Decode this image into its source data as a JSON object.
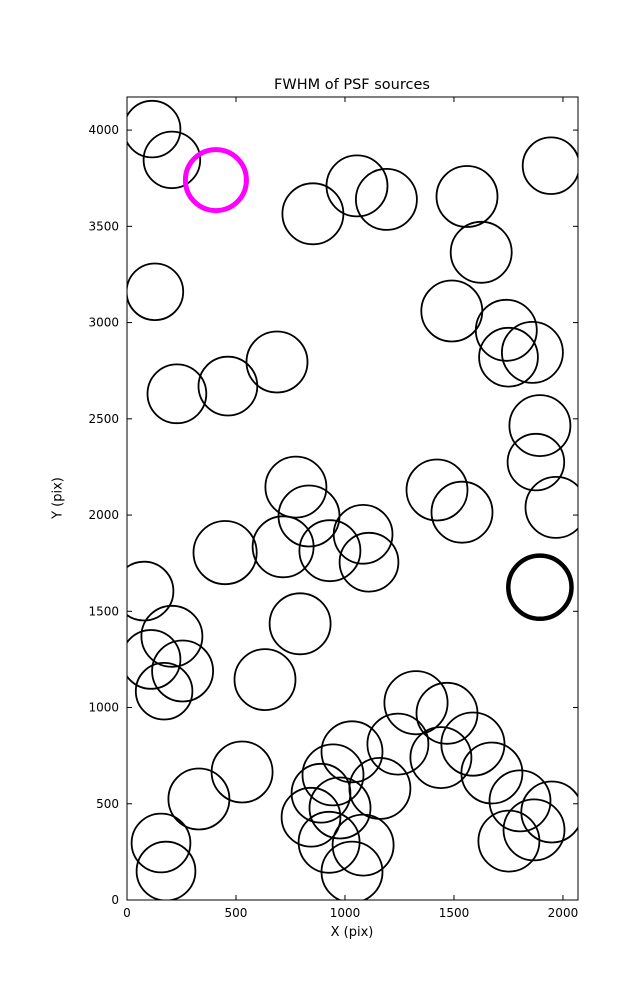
{
  "chart_data": {
    "type": "scatter",
    "title": "FWHM of PSF sources",
    "xlabel": "X (pix)",
    "ylabel": "Y (pix)",
    "xlim": [
      0,
      2069
    ],
    "ylim": [
      0,
      4172
    ],
    "xticks": [
      0,
      500,
      1000,
      1500,
      2000
    ],
    "yticks": [
      0,
      500,
      1000,
      1500,
      2000,
      2500,
      3000,
      3500,
      4000
    ],
    "grid": false,
    "legend": "none",
    "marker": "circle-outline",
    "default_color": "#000000",
    "highlight_color": "#ff00ff",
    "default_linewidth": 1.8,
    "circles": [
      {
        "x": 115,
        "y": 4005,
        "r": 130
      },
      {
        "x": 206,
        "y": 3845,
        "r": 130
      },
      {
        "x": 408,
        "y": 3740,
        "r": 140,
        "color": "#ff00ff",
        "lw": 5,
        "highlight": true
      },
      {
        "x": 853,
        "y": 3565,
        "r": 140
      },
      {
        "x": 1055,
        "y": 3710,
        "r": 140
      },
      {
        "x": 1190,
        "y": 3640,
        "r": 140
      },
      {
        "x": 1560,
        "y": 3655,
        "r": 140
      },
      {
        "x": 1625,
        "y": 3365,
        "r": 140
      },
      {
        "x": 1945,
        "y": 3815,
        "r": 130
      },
      {
        "x": 128,
        "y": 3160,
        "r": 130
      },
      {
        "x": 1490,
        "y": 3060,
        "r": 140
      },
      {
        "x": 1740,
        "y": 2960,
        "r": 140
      },
      {
        "x": 1860,
        "y": 2845,
        "r": 140
      },
      {
        "x": 1750,
        "y": 2820,
        "r": 135
      },
      {
        "x": 688,
        "y": 2795,
        "r": 140
      },
      {
        "x": 463,
        "y": 2670,
        "r": 135
      },
      {
        "x": 229,
        "y": 2630,
        "r": 135
      },
      {
        "x": 1894,
        "y": 2465,
        "r": 140
      },
      {
        "x": 1876,
        "y": 2275,
        "r": 130
      },
      {
        "x": 775,
        "y": 2145,
        "r": 140
      },
      {
        "x": 835,
        "y": 1995,
        "r": 140
      },
      {
        "x": 716,
        "y": 1835,
        "r": 140
      },
      {
        "x": 931,
        "y": 1815,
        "r": 140
      },
      {
        "x": 450,
        "y": 1805,
        "r": 145
      },
      {
        "x": 1083,
        "y": 1900,
        "r": 135
      },
      {
        "x": 1110,
        "y": 1755,
        "r": 135
      },
      {
        "x": 1422,
        "y": 2130,
        "r": 140
      },
      {
        "x": 1537,
        "y": 2015,
        "r": 140
      },
      {
        "x": 1968,
        "y": 2040,
        "r": 140
      },
      {
        "x": 1894,
        "y": 1625,
        "r": 145,
        "lw": 4.5,
        "bold": true
      },
      {
        "x": 78,
        "y": 1605,
        "r": 135
      },
      {
        "x": 206,
        "y": 1370,
        "r": 140
      },
      {
        "x": 110,
        "y": 1250,
        "r": 135
      },
      {
        "x": 255,
        "y": 1190,
        "r": 140
      },
      {
        "x": 170,
        "y": 1085,
        "r": 130
      },
      {
        "x": 794,
        "y": 1435,
        "r": 140
      },
      {
        "x": 633,
        "y": 1145,
        "r": 140
      },
      {
        "x": 1326,
        "y": 1025,
        "r": 145
      },
      {
        "x": 1468,
        "y": 970,
        "r": 140
      },
      {
        "x": 1243,
        "y": 810,
        "r": 140
      },
      {
        "x": 1032,
        "y": 770,
        "r": 140
      },
      {
        "x": 945,
        "y": 650,
        "r": 140
      },
      {
        "x": 977,
        "y": 478,
        "r": 140
      },
      {
        "x": 927,
        "y": 300,
        "r": 140
      },
      {
        "x": 1083,
        "y": 285,
        "r": 140
      },
      {
        "x": 1032,
        "y": 145,
        "r": 140
      },
      {
        "x": 844,
        "y": 430,
        "r": 135
      },
      {
        "x": 1160,
        "y": 580,
        "r": 140
      },
      {
        "x": 890,
        "y": 555,
        "r": 135
      },
      {
        "x": 330,
        "y": 525,
        "r": 140
      },
      {
        "x": 528,
        "y": 665,
        "r": 140
      },
      {
        "x": 156,
        "y": 296,
        "r": 135
      },
      {
        "x": 179,
        "y": 150,
        "r": 135
      },
      {
        "x": 1587,
        "y": 810,
        "r": 145
      },
      {
        "x": 1674,
        "y": 660,
        "r": 140
      },
      {
        "x": 1803,
        "y": 515,
        "r": 140
      },
      {
        "x": 1949,
        "y": 457,
        "r": 140
      },
      {
        "x": 1867,
        "y": 364,
        "r": 140
      },
      {
        "x": 1752,
        "y": 306,
        "r": 140
      },
      {
        "x": 1440,
        "y": 740,
        "r": 140
      }
    ]
  }
}
